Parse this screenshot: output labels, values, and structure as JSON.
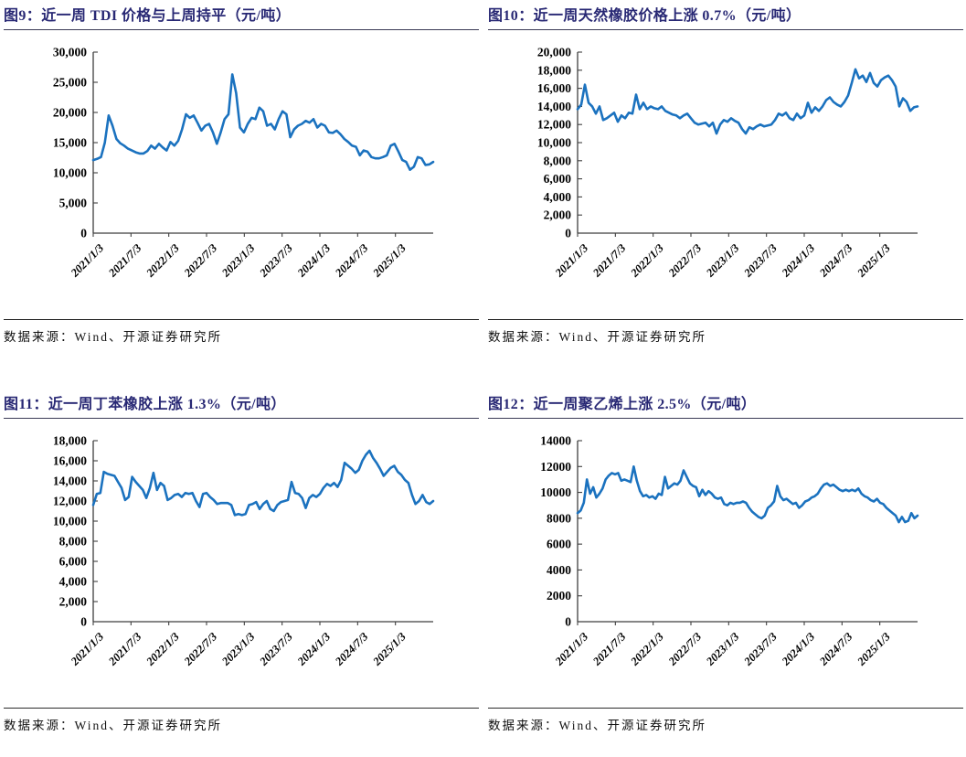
{
  "page": {
    "background": "#ffffff",
    "axis_color": "#3f3f3f",
    "text_color": "#000000",
    "title_color": "#282874"
  },
  "chart_data": [
    {
      "id": "fig9",
      "type": "line",
      "title": "图9：近一周 TDI 价格与上周持平（元/吨）",
      "source": "数据来源：Wind、开源证券研究所",
      "ylabel": "",
      "xlabel": "",
      "ylim": [
        0,
        30000
      ],
      "ytick_step": 5000,
      "ytick_format": "comma",
      "grid": false,
      "legend": false,
      "line_color": "#1B72BF",
      "xtick_labels": [
        "2021/1/3",
        "2021/7/3",
        "2022/1/3",
        "2022/7/3",
        "2023/1/3",
        "2023/7/3",
        "2024/1/3",
        "2024/7/3",
        "2025/1/3"
      ],
      "values": [
        12100,
        12300,
        12600,
        15000,
        19500,
        17800,
        15600,
        14900,
        14500,
        14000,
        13700,
        13400,
        13200,
        13200,
        13600,
        14500,
        14000,
        14800,
        14200,
        13700,
        15100,
        14500,
        15300,
        17200,
        19700,
        19100,
        19500,
        18300,
        17000,
        17800,
        18100,
        16700,
        14800,
        16700,
        18900,
        19700,
        26300,
        23200,
        17500,
        16700,
        18100,
        19100,
        18900,
        20800,
        20200,
        17800,
        18100,
        17200,
        18900,
        20200,
        19700,
        15900,
        17200,
        17800,
        18100,
        18600,
        18300,
        18900,
        17500,
        18100,
        17800,
        16700,
        16600,
        17000,
        16400,
        15600,
        15100,
        14500,
        14300,
        12900,
        13700,
        13500,
        12600,
        12400,
        12400,
        12600,
        12900,
        14500,
        14800,
        13500,
        12100,
        11800,
        10500,
        11000,
        12600,
        12400,
        11300,
        11400,
        11800
      ]
    },
    {
      "id": "fig10",
      "type": "line",
      "title": "图10：近一周天然橡胶价格上涨 0.7%（元/吨）",
      "source": "数据来源：Wind、开源证券研究所",
      "ylabel": "",
      "xlabel": "",
      "ylim": [
        0,
        20000
      ],
      "ytick_step": 2000,
      "ytick_format": "comma",
      "grid": false,
      "legend": false,
      "line_color": "#1B72BF",
      "xtick_labels": [
        "2021/1/3",
        "2021/7/3",
        "2022/1/3",
        "2022/7/3",
        "2023/1/3",
        "2023/7/3",
        "2024/1/3",
        "2024/7/3",
        "2025/1/3"
      ],
      "values": [
        13700,
        14200,
        16400,
        14400,
        14000,
        13200,
        14000,
        12500,
        12700,
        13000,
        13300,
        12300,
        13000,
        12700,
        13300,
        13200,
        15300,
        13700,
        14400,
        13700,
        14000,
        13800,
        13700,
        14000,
        13500,
        13300,
        13100,
        13000,
        12700,
        13000,
        13200,
        12700,
        12200,
        12000,
        12100,
        12200,
        11800,
        12200,
        11000,
        12000,
        12500,
        12300,
        12700,
        12400,
        12200,
        11500,
        11000,
        11700,
        11500,
        11800,
        12000,
        11800,
        11900,
        12000,
        12500,
        13200,
        13000,
        13300,
        12700,
        12500,
        13200,
        12700,
        13000,
        14400,
        13300,
        13900,
        13500,
        14000,
        14700,
        15000,
        14500,
        14200,
        14000,
        14500,
        15200,
        16600,
        18100,
        17100,
        17400,
        16700,
        17700,
        16600,
        16200,
        16900,
        17200,
        17400,
        16900,
        16200,
        14000,
        14900,
        14500,
        13500,
        13900,
        14000
      ]
    },
    {
      "id": "fig11",
      "type": "line",
      "title": "图11：近一周丁苯橡胶上涨 1.3%（元/吨）",
      "source": "数据来源：Wind、开源证券研究所",
      "ylabel": "",
      "xlabel": "",
      "ylim": [
        0,
        18000
      ],
      "ytick_step": 2000,
      "ytick_format": "comma",
      "grid": false,
      "legend": false,
      "line_color": "#1B72BF",
      "xtick_labels": [
        "2021/1/3",
        "2021/7/3",
        "2022/1/3",
        "2022/7/3",
        "2023/1/3",
        "2023/7/3",
        "2024/1/3",
        "2024/7/3",
        "2025/1/3"
      ],
      "values": [
        11600,
        12700,
        12800,
        14900,
        14700,
        14600,
        14500,
        13900,
        13300,
        12100,
        12400,
        14400,
        13900,
        13500,
        13100,
        12300,
        13300,
        14800,
        13100,
        13800,
        13500,
        12100,
        12300,
        12600,
        12700,
        12400,
        12800,
        12700,
        12800,
        12000,
        11400,
        12700,
        12800,
        12400,
        12100,
        11700,
        11800,
        11800,
        11800,
        11600,
        10600,
        10700,
        10600,
        10700,
        11600,
        11700,
        11900,
        11200,
        11700,
        12000,
        11200,
        11000,
        11600,
        11900,
        12000,
        12100,
        13900,
        12800,
        12700,
        12300,
        11300,
        12300,
        12600,
        12400,
        12700,
        13300,
        13700,
        13500,
        13800,
        13400,
        14100,
        15800,
        15500,
        15200,
        14800,
        15100,
        16000,
        16600,
        17000,
        16300,
        15800,
        15200,
        14500,
        14900,
        15300,
        15500,
        14900,
        14600,
        14100,
        13800,
        12600,
        11700,
        12000,
        12600,
        11900,
        11700,
        12000
      ]
    },
    {
      "id": "fig12",
      "type": "line",
      "title": "图12：近一周聚乙烯上涨 2.5%（元/吨）",
      "source": "数据来源：Wind、开源证券研究所",
      "ylabel": "",
      "xlabel": "",
      "ylim": [
        0,
        14000
      ],
      "ytick_step": 2000,
      "ytick_format": "plain",
      "grid": false,
      "legend": false,
      "line_color": "#1B72BF",
      "xtick_labels": [
        "2021/1/3",
        "2021/7/3",
        "2022/1/3",
        "2022/7/3",
        "2023/1/3",
        "2023/7/3",
        "2024/1/3",
        "2024/7/3",
        "2025/1/3"
      ],
      "values": [
        8400,
        8600,
        9200,
        11000,
        9900,
        10400,
        9600,
        9900,
        10300,
        11000,
        11300,
        11500,
        11400,
        11500,
        10900,
        11000,
        10900,
        10800,
        12000,
        10900,
        10100,
        9700,
        9800,
        9600,
        9700,
        9500,
        9900,
        9800,
        11200,
        10300,
        10500,
        10700,
        10600,
        10900,
        11700,
        11200,
        10700,
        10500,
        10400,
        9700,
        10200,
        9800,
        10100,
        9900,
        9600,
        9500,
        9600,
        9100,
        9000,
        9200,
        9100,
        9200,
        9200,
        9300,
        9200,
        8800,
        8500,
        8300,
        8100,
        8000,
        8200,
        8800,
        9000,
        9300,
        10500,
        9700,
        9400,
        9500,
        9300,
        9100,
        9200,
        8800,
        9000,
        9300,
        9400,
        9600,
        9700,
        9900,
        10300,
        10600,
        10700,
        10500,
        10600,
        10400,
        10200,
        10100,
        10200,
        10100,
        10200,
        10100,
        10300,
        9900,
        9700,
        9600,
        9400,
        9300,
        9500,
        9200,
        9100,
        8800,
        8600,
        8400,
        8200,
        7700,
        8100,
        7700,
        7800,
        8400,
        8000,
        8200
      ]
    }
  ]
}
